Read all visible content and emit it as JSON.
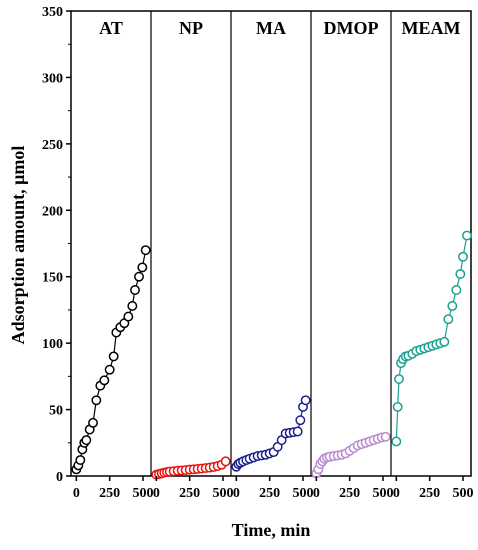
{
  "chart_data": {
    "type": "scatter",
    "xlabel": "Time, min",
    "ylabel": "Adsorption amount, μmol",
    "ylim": [
      0,
      350
    ],
    "xlim": [
      -40,
      560
    ],
    "x_ticks": [
      "0",
      "250",
      "500"
    ],
    "y_ticks": [
      "0",
      "50",
      "100",
      "150",
      "200",
      "250",
      "300",
      "350"
    ],
    "grid": false,
    "legend": "none",
    "panels": [
      {
        "name": "AT",
        "color": "#000000",
        "points": [
          [
            0,
            5
          ],
          [
            15,
            8
          ],
          [
            30,
            12
          ],
          [
            45,
            20
          ],
          [
            60,
            25
          ],
          [
            75,
            27
          ],
          [
            100,
            35
          ],
          [
            125,
            40
          ],
          [
            150,
            57
          ],
          [
            180,
            68
          ],
          [
            210,
            72
          ],
          [
            250,
            80
          ],
          [
            280,
            90
          ],
          [
            300,
            108
          ],
          [
            330,
            112
          ],
          [
            360,
            115
          ],
          [
            390,
            120
          ],
          [
            420,
            128
          ],
          [
            440,
            140
          ],
          [
            470,
            150
          ],
          [
            495,
            157
          ],
          [
            520,
            170
          ]
        ]
      },
      {
        "name": "NP",
        "color": "#e8120c",
        "points": [
          [
            0,
            1
          ],
          [
            20,
            1.5
          ],
          [
            40,
            2
          ],
          [
            60,
            2.5
          ],
          [
            80,
            3
          ],
          [
            100,
            3.3
          ],
          [
            130,
            3.6
          ],
          [
            160,
            4
          ],
          [
            190,
            4.2
          ],
          [
            220,
            4.5
          ],
          [
            250,
            4.8
          ],
          [
            280,
            5
          ],
          [
            310,
            5.3
          ],
          [
            340,
            5.6
          ],
          [
            370,
            6
          ],
          [
            400,
            6.3
          ],
          [
            430,
            6.8
          ],
          [
            460,
            7.5
          ],
          [
            490,
            8.5
          ],
          [
            520,
            11
          ]
        ]
      },
      {
        "name": "MA",
        "color": "#1b1f8a",
        "points": [
          [
            0,
            7
          ],
          [
            15,
            9
          ],
          [
            30,
            10
          ],
          [
            50,
            11
          ],
          [
            75,
            12
          ],
          [
            100,
            13
          ],
          [
            130,
            14
          ],
          [
            160,
            15
          ],
          [
            190,
            15.5
          ],
          [
            220,
            16
          ],
          [
            250,
            17
          ],
          [
            280,
            18
          ],
          [
            310,
            22
          ],
          [
            340,
            27
          ],
          [
            370,
            32
          ],
          [
            400,
            32.5
          ],
          [
            430,
            33
          ],
          [
            460,
            33.5
          ],
          [
            480,
            42
          ],
          [
            500,
            52
          ],
          [
            520,
            57
          ]
        ]
      },
      {
        "name": "DMOP",
        "color": "#b98ad0",
        "points": [
          [
            0,
            2
          ],
          [
            15,
            5
          ],
          [
            30,
            9
          ],
          [
            45,
            11
          ],
          [
            60,
            13
          ],
          [
            80,
            14
          ],
          [
            100,
            14.5
          ],
          [
            130,
            15
          ],
          [
            160,
            15.5
          ],
          [
            190,
            16
          ],
          [
            220,
            17
          ],
          [
            250,
            19
          ],
          [
            280,
            21
          ],
          [
            310,
            23
          ],
          [
            340,
            24
          ],
          [
            370,
            25
          ],
          [
            400,
            26
          ],
          [
            430,
            27
          ],
          [
            460,
            28
          ],
          [
            490,
            29
          ],
          [
            520,
            29.5
          ]
        ]
      },
      {
        "name": "MEAM",
        "color": "#1aa090",
        "points": [
          [
            0,
            26
          ],
          [
            10,
            52
          ],
          [
            20,
            73
          ],
          [
            35,
            85
          ],
          [
            50,
            88
          ],
          [
            70,
            90
          ],
          [
            90,
            90.5
          ],
          [
            120,
            92
          ],
          [
            150,
            94
          ],
          [
            180,
            95
          ],
          [
            210,
            96
          ],
          [
            240,
            97
          ],
          [
            270,
            98
          ],
          [
            300,
            99
          ],
          [
            330,
            100
          ],
          [
            360,
            101
          ],
          [
            390,
            118
          ],
          [
            420,
            128
          ],
          [
            450,
            140
          ],
          [
            480,
            152
          ],
          [
            500,
            165
          ],
          [
            530,
            181
          ]
        ]
      }
    ]
  }
}
